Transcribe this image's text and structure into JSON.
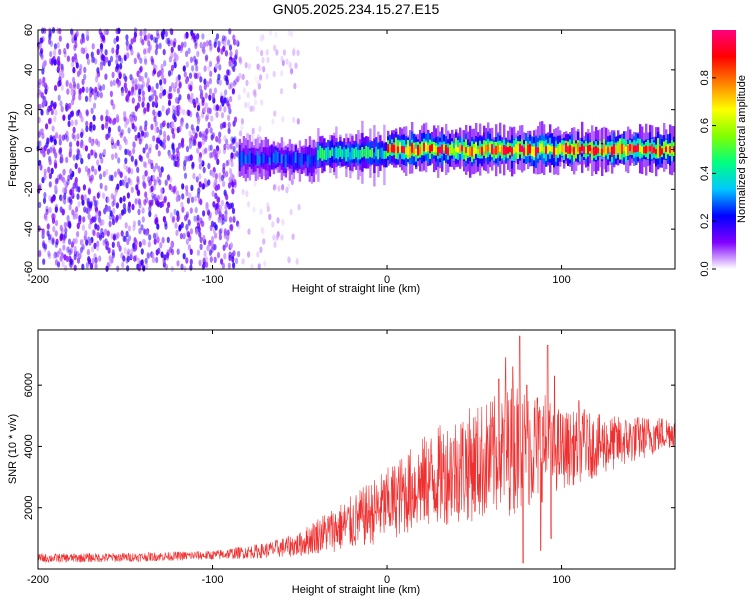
{
  "figure_title": "GN05.2025.234.15.27.E15",
  "colors": {
    "snr_line": "#f03030",
    "background": "#ffffff",
    "axes": "#000000"
  },
  "chart_data": [
    {
      "type": "heatmap",
      "title": "",
      "xlabel": "Height of straight line (km)",
      "ylabel": "Frequency (Hz)",
      "xlim": [
        -200,
        165
      ],
      "ylim": [
        -60,
        60
      ],
      "xticks": [
        -200,
        -100,
        0,
        100
      ],
      "yticks": [
        -60,
        -40,
        -20,
        0,
        20,
        40,
        60
      ],
      "colorbar": {
        "label": "Normalized spectral amplitude",
        "range": [
          0.0,
          1.0
        ],
        "ticks": [
          0.0,
          0.2,
          0.4,
          0.6,
          0.8
        ],
        "tick_labels": [
          "0.0",
          "0.2",
          "0.4",
          "0.6",
          "0.8"
        ],
        "colormap": [
          "#ffffff",
          "#8000ff",
          "#0000ff",
          "#00c8ff",
          "#00ff80",
          "#80ff00",
          "#ffff00",
          "#ff8000",
          "#ff0000",
          "#ff0080"
        ]
      },
      "regions": [
        {
          "x_range": [
            -200,
            -85
          ],
          "freq_range": [
            -60,
            60
          ],
          "amplitude": 0.1,
          "description_pattern": "noise"
        },
        {
          "x_range": [
            -85,
            -50
          ],
          "freq_range": [
            -60,
            60
          ],
          "amplitude": 0.03,
          "description_pattern": "sparse noise"
        },
        {
          "x_range": [
            -85,
            -40
          ],
          "center_freq": -5,
          "half_width_hz": 7,
          "peak_amplitude": 0.3
        },
        {
          "x_range": [
            -40,
            0
          ],
          "center_freq": -2,
          "half_width_hz": 6,
          "peak_amplitude": 0.5
        },
        {
          "x_range": [
            0,
            165
          ],
          "center_freq": 0,
          "half_width_hz": 5,
          "peak_amplitude": 1.0
        }
      ]
    },
    {
      "type": "line",
      "title": "",
      "xlabel": "Height of straight line (km)",
      "ylabel": "SNR (10 * v/v)",
      "xlim": [
        -200,
        165
      ],
      "ylim": [
        0,
        7800
      ],
      "xticks": [
        -200,
        -100,
        0,
        100
      ],
      "yticks": [
        2000,
        4000,
        6000
      ],
      "grid": false,
      "series": [
        {
          "envelope": [
            {
              "x": -200,
              "mean": 350,
              "spread": 150
            },
            {
              "x": -150,
              "mean": 380,
              "spread": 150
            },
            {
              "x": -100,
              "mean": 450,
              "spread": 150
            },
            {
              "x": -70,
              "mean": 600,
              "spread": 250
            },
            {
              "x": -50,
              "mean": 800,
              "spread": 400
            },
            {
              "x": -40,
              "mean": 1100,
              "spread": 600
            },
            {
              "x": -20,
              "mean": 1500,
              "spread": 900
            },
            {
              "x": 0,
              "mean": 2100,
              "spread": 1200
            },
            {
              "x": 20,
              "mean": 2800,
              "spread": 1500
            },
            {
              "x": 40,
              "mean": 3300,
              "spread": 1800
            },
            {
              "x": 60,
              "mean": 3600,
              "spread": 2000
            },
            {
              "x": 75,
              "mean": 4000,
              "spread": 2200
            },
            {
              "x": 90,
              "mean": 4000,
              "spread": 1800
            },
            {
              "x": 100,
              "mean": 3900,
              "spread": 1300
            },
            {
              "x": 130,
              "mean": 4100,
              "spread": 900
            },
            {
              "x": 165,
              "mean": 4500,
              "spread": 500
            }
          ],
          "spikes": [
            {
              "x": 64,
              "y": 6200
            },
            {
              "x": 68,
              "y": 6900
            },
            {
              "x": 72,
              "y": 6600
            },
            {
              "x": 76,
              "y": 7600
            },
            {
              "x": 80,
              "y": 6000
            },
            {
              "x": 88,
              "y": 7000
            },
            {
              "x": 92,
              "y": 7300
            },
            {
              "x": 96,
              "y": 6300
            },
            {
              "x": 110,
              "y": 5500
            },
            {
              "x": 113,
              "y": 5200
            }
          ],
          "dips": [
            {
              "x": 78,
              "y": 200
            },
            {
              "x": 88,
              "y": 600
            },
            {
              "x": 94,
              "y": 1000
            }
          ]
        }
      ]
    }
  ]
}
